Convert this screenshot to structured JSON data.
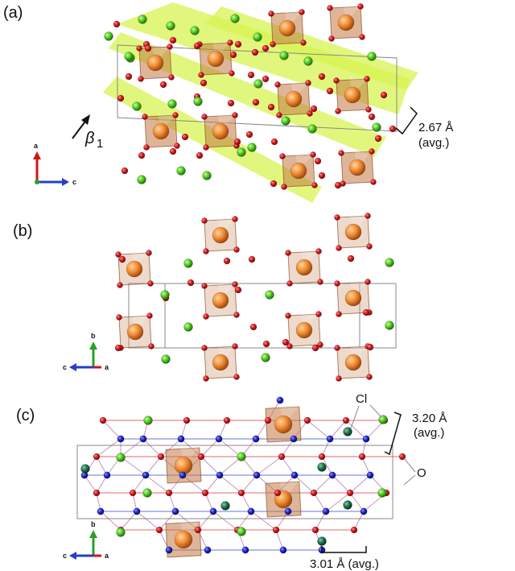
{
  "panels": {
    "a": {
      "label": "(a)",
      "beta_symbol": "β",
      "beta_subscript": "1",
      "spacing_value": "2.67 Å",
      "spacing_note": "(avg.)",
      "axis_up": "a",
      "axis_right": "c"
    },
    "b": {
      "label": "(b)",
      "axis_up": "b",
      "axis_left": "c",
      "axis_out": "a"
    },
    "c": {
      "label": "(c)",
      "cl_label": "Cl",
      "o_label": "O",
      "spacing_value": "3.20 Å",
      "spacing_note": "(avg.)",
      "bottom_spacing": "3.01 Å (avg.)",
      "axis_up": "b",
      "axis_left": "c",
      "axis_out": "a"
    }
  },
  "colors": {
    "oxygen": "#d0141a",
    "chlorine": "#4cc61e",
    "cation": "#f08a30",
    "polyhedron": "#c98a5a",
    "plane": "#d9f45a",
    "blue_atom": "#1a22c8",
    "dark_cl": "#1e6e4a",
    "axis_red": "#d0141a",
    "axis_blue": "#2a3cc8",
    "axis_green": "#28a028"
  }
}
